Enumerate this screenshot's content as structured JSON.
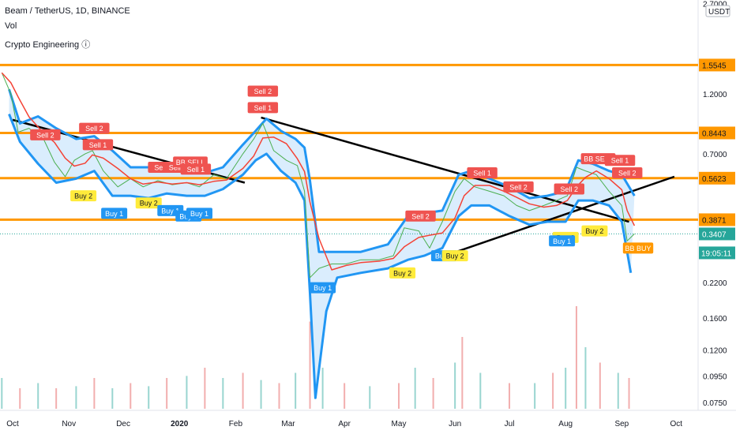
{
  "header": {
    "symbol_line": "Beam / TetherUS, 1D, BINANCE",
    "vol_label": "Vol",
    "indicator_label": "Crypto Engineering ⓘ"
  },
  "axis": {
    "currency": "USDT",
    "top_value": "2.7000",
    "countdown": "19:05:11"
  },
  "colors": {
    "orange": "#ff9800",
    "black": "#000000",
    "blue_band": "#2196f3",
    "band_fill": "#bbdefb",
    "red_ma": "#f44336",
    "green_ma": "#4caf50",
    "sell_bg": "#ef5350",
    "buy2_bg": "#ffeb3b",
    "buy1_bg": "#2196f3",
    "last_price_bg": "#26a69a",
    "bb_buy_bg": "#ff9800"
  },
  "chart_data": {
    "type": "line",
    "scale": "log",
    "ylim": [
      0.065,
      2.75
    ],
    "y_ticks": [
      "2.7000",
      "1.5545",
      "1.2000",
      "0.8443",
      "0.7000",
      "0.5623",
      "0.3871",
      "0.3407",
      "0.2200",
      "0.1600",
      "0.1200",
      "0.0950",
      "0.0750"
    ],
    "x_ticks": [
      "Oct",
      "Nov",
      "Dec",
      "2020",
      "Feb",
      "Mar",
      "Apr",
      "May",
      "Jun",
      "Jul",
      "Aug",
      "Sep",
      "Oct"
    ],
    "horizontal_levels": [
      1.5545,
      0.8443,
      0.5623,
      0.3871
    ],
    "last_price": 0.3407,
    "trendlines": [
      {
        "from": [
          "2019-10-01",
          0.95
        ],
        "to": [
          "2020-02-06",
          0.54
        ]
      },
      {
        "from": [
          "2020-02-15",
          0.97
        ],
        "to": [
          "2020-09-05",
          0.38
        ]
      },
      {
        "from": [
          "2020-05-20",
          0.27
        ],
        "to": [
          "2020-09-30",
          0.57
        ]
      }
    ],
    "price_series": [
      [
        "2019-09-25",
        1.45
      ],
      [
        "2019-09-30",
        1.2
      ],
      [
        "2019-10-04",
        0.85
      ],
      [
        "2019-10-10",
        0.88
      ],
      [
        "2019-10-18",
        0.8
      ],
      [
        "2019-10-24",
        0.65
      ],
      [
        "2019-10-30",
        0.57
      ],
      [
        "2019-11-04",
        0.66
      ],
      [
        "2019-11-10",
        0.7
      ],
      [
        "2019-11-14",
        0.72
      ],
      [
        "2019-11-20",
        0.6
      ],
      [
        "2019-11-28",
        0.52
      ],
      [
        "2019-12-05",
        0.56
      ],
      [
        "2019-12-12",
        0.52
      ],
      [
        "2019-12-20",
        0.55
      ],
      [
        "2019-12-28",
        0.53
      ],
      [
        "2020-01-05",
        0.54
      ],
      [
        "2020-01-12",
        0.52
      ],
      [
        "2020-01-20",
        0.58
      ],
      [
        "2020-01-27",
        0.56
      ],
      [
        "2020-02-05",
        0.7
      ],
      [
        "2020-02-11",
        0.8
      ],
      [
        "2020-02-16",
        0.92
      ],
      [
        "2020-02-22",
        0.72
      ],
      [
        "2020-02-29",
        0.66
      ],
      [
        "2020-03-06",
        0.63
      ],
      [
        "2020-03-10",
        0.5
      ],
      [
        "2020-03-13",
        0.23
      ],
      [
        "2020-03-18",
        0.25
      ],
      [
        "2020-03-25",
        0.26
      ],
      [
        "2020-04-02",
        0.26
      ],
      [
        "2020-04-10",
        0.27
      ],
      [
        "2020-04-20",
        0.27
      ],
      [
        "2020-04-28",
        0.28
      ],
      [
        "2020-05-04",
        0.36
      ],
      [
        "2020-05-12",
        0.35
      ],
      [
        "2020-05-18",
        0.3
      ],
      [
        "2020-05-25",
        0.38
      ],
      [
        "2020-06-01",
        0.5
      ],
      [
        "2020-06-06",
        0.56
      ],
      [
        "2020-06-12",
        0.52
      ],
      [
        "2020-06-20",
        0.5
      ],
      [
        "2020-06-28",
        0.48
      ],
      [
        "2020-07-05",
        0.44
      ],
      [
        "2020-07-12",
        0.42
      ],
      [
        "2020-07-20",
        0.44
      ],
      [
        "2020-07-27",
        0.46
      ],
      [
        "2020-08-02",
        0.48
      ],
      [
        "2020-08-07",
        0.62
      ],
      [
        "2020-08-12",
        0.6
      ],
      [
        "2020-08-18",
        0.58
      ],
      [
        "2020-08-25",
        0.5
      ],
      [
        "2020-09-01",
        0.44
      ],
      [
        "2020-09-04",
        0.32
      ],
      [
        "2020-09-08",
        0.3407
      ]
    ],
    "upper_band": [
      [
        "2019-09-29",
        1.25
      ],
      [
        "2019-10-05",
        0.92
      ],
      [
        "2019-10-15",
        0.98
      ],
      [
        "2019-10-25",
        0.88
      ],
      [
        "2019-11-05",
        0.8
      ],
      [
        "2019-11-15",
        0.82
      ],
      [
        "2019-11-25",
        0.72
      ],
      [
        "2019-12-05",
        0.62
      ],
      [
        "2019-12-15",
        0.62
      ],
      [
        "2019-12-25",
        0.6
      ],
      [
        "2020-01-05",
        0.6
      ],
      [
        "2020-01-15",
        0.59
      ],
      [
        "2020-01-25",
        0.62
      ],
      [
        "2020-02-05",
        0.76
      ],
      [
        "2020-02-12",
        0.86
      ],
      [
        "2020-02-18",
        0.96
      ],
      [
        "2020-02-26",
        0.86
      ],
      [
        "2020-03-05",
        0.8
      ],
      [
        "2020-03-10",
        0.74
      ],
      [
        "2020-03-13",
        0.55
      ],
      [
        "2020-03-18",
        0.29
      ],
      [
        "2020-03-28",
        0.29
      ],
      [
        "2020-04-10",
        0.29
      ],
      [
        "2020-04-25",
        0.31
      ],
      [
        "2020-05-06",
        0.4
      ],
      [
        "2020-05-15",
        0.41
      ],
      [
        "2020-05-25",
        0.42
      ],
      [
        "2020-06-03",
        0.58
      ],
      [
        "2020-06-10",
        0.6
      ],
      [
        "2020-06-20",
        0.56
      ],
      [
        "2020-07-01",
        0.52
      ],
      [
        "2020-07-12",
        0.47
      ],
      [
        "2020-07-22",
        0.48
      ],
      [
        "2020-08-01",
        0.5
      ],
      [
        "2020-08-08",
        0.66
      ],
      [
        "2020-08-16",
        0.64
      ],
      [
        "2020-08-25",
        0.6
      ],
      [
        "2020-09-01",
        0.58
      ],
      [
        "2020-09-08",
        0.48
      ]
    ],
    "lower_band": [
      [
        "2019-09-29",
        1.0
      ],
      [
        "2019-10-05",
        0.78
      ],
      [
        "2019-10-15",
        0.64
      ],
      [
        "2019-10-25",
        0.54
      ],
      [
        "2019-11-05",
        0.56
      ],
      [
        "2019-11-15",
        0.6
      ],
      [
        "2019-11-25",
        0.48
      ],
      [
        "2019-12-05",
        0.48
      ],
      [
        "2019-12-15",
        0.47
      ],
      [
        "2019-12-25",
        0.49
      ],
      [
        "2020-01-05",
        0.48
      ],
      [
        "2020-01-15",
        0.48
      ],
      [
        "2020-01-25",
        0.51
      ],
      [
        "2020-02-05",
        0.58
      ],
      [
        "2020-02-12",
        0.66
      ],
      [
        "2020-02-18",
        0.7
      ],
      [
        "2020-02-26",
        0.6
      ],
      [
        "2020-03-05",
        0.54
      ],
      [
        "2020-03-10",
        0.46
      ],
      [
        "2020-03-13",
        0.2
      ],
      [
        "2020-03-16",
        0.078
      ],
      [
        "2020-03-22",
        0.17
      ],
      [
        "2020-03-28",
        0.23
      ],
      [
        "2020-04-10",
        0.24
      ],
      [
        "2020-04-25",
        0.25
      ],
      [
        "2020-05-06",
        0.27
      ],
      [
        "2020-05-15",
        0.28
      ],
      [
        "2020-05-25",
        0.3
      ],
      [
        "2020-06-03",
        0.4
      ],
      [
        "2020-06-10",
        0.44
      ],
      [
        "2020-06-20",
        0.44
      ],
      [
        "2020-07-01",
        0.4
      ],
      [
        "2020-07-12",
        0.37
      ],
      [
        "2020-07-22",
        0.38
      ],
      [
        "2020-08-01",
        0.38
      ],
      [
        "2020-08-08",
        0.46
      ],
      [
        "2020-08-16",
        0.46
      ],
      [
        "2020-08-25",
        0.44
      ],
      [
        "2020-09-01",
        0.38
      ],
      [
        "2020-09-06",
        0.24
      ]
    ],
    "signals": [
      {
        "label": "Sell 2",
        "date": "2019-10-19",
        "price": 0.83,
        "kind": "sell"
      },
      {
        "label": "Sell 2",
        "date": "2019-11-15",
        "price": 0.88,
        "kind": "sell"
      },
      {
        "label": "Sell 1",
        "date": "2019-11-17",
        "price": 0.76,
        "kind": "sell"
      },
      {
        "label": "Buy 2",
        "date": "2019-11-09",
        "price": 0.48,
        "kind": "buy2"
      },
      {
        "label": "Buy 1",
        "date": "2019-11-26",
        "price": 0.41,
        "kind": "buy1"
      },
      {
        "label": "Buy 2",
        "date": "2019-12-15",
        "price": 0.45,
        "kind": "buy2"
      },
      {
        "label": "Buy 1",
        "date": "2019-12-27",
        "price": 0.42,
        "kind": "buy1"
      },
      {
        "label": "Buy 1",
        "date": "2020-01-06",
        "price": 0.4,
        "kind": "buy1"
      },
      {
        "label": "Buy 1",
        "date": "2020-01-12",
        "price": 0.41,
        "kind": "buy1"
      },
      {
        "label": "Sell 2",
        "date": "2019-12-23",
        "price": 0.62,
        "kind": "sell"
      },
      {
        "label": "Sell 1",
        "date": "2019-12-31",
        "price": 0.62,
        "kind": "sell"
      },
      {
        "label": "BB SELL",
        "date": "2020-01-07",
        "price": 0.65,
        "kind": "sell"
      },
      {
        "label": "Sell 1",
        "date": "2020-01-10",
        "price": 0.61,
        "kind": "sell"
      },
      {
        "label": "Sell 2",
        "date": "2020-02-16",
        "price": 1.23,
        "kind": "sell"
      },
      {
        "label": "Sell 1",
        "date": "2020-02-16",
        "price": 1.06,
        "kind": "sell"
      },
      {
        "label": "Buy 1",
        "date": "2020-03-20",
        "price": 0.21,
        "kind": "buy1"
      },
      {
        "label": "Buy 2",
        "date": "2020-05-03",
        "price": 0.24,
        "kind": "buy2"
      },
      {
        "label": "Sell 2",
        "date": "2020-05-13",
        "price": 0.4,
        "kind": "sell"
      },
      {
        "label": "Buy 1",
        "date": "2020-05-26",
        "price": 0.28,
        "kind": "buy1"
      },
      {
        "label": "Buy 2",
        "date": "2020-06-01",
        "price": 0.28,
        "kind": "buy2"
      },
      {
        "label": "Sell 1",
        "date": "2020-06-16",
        "price": 0.59,
        "kind": "sell"
      },
      {
        "label": "Sell 2",
        "date": "2020-07-06",
        "price": 0.52,
        "kind": "sell"
      },
      {
        "label": "Sell 2",
        "date": "2020-08-03",
        "price": 0.51,
        "kind": "sell"
      },
      {
        "label": "Buy 2",
        "date": "2020-08-01",
        "price": 0.33,
        "kind": "buy2"
      },
      {
        "label": "Buy 1",
        "date": "2020-07-30",
        "price": 0.32,
        "kind": "buy1"
      },
      {
        "label": "Buy 2",
        "date": "2020-08-17",
        "price": 0.35,
        "kind": "buy2"
      },
      {
        "label": "BB SELL",
        "date": "2020-08-19",
        "price": 0.67,
        "kind": "sell"
      },
      {
        "label": "Sell 1",
        "date": "2020-08-31",
        "price": 0.66,
        "kind": "sell"
      },
      {
        "label": "Sell 2",
        "date": "2020-09-04",
        "price": 0.59,
        "kind": "sell"
      },
      {
        "label": "BB BUY",
        "date": "2020-09-10",
        "price": 0.3,
        "kind": "bbbuy"
      }
    ],
    "volume": [
      [
        "2019-09-25",
        0.3
      ],
      [
        "2019-10-05",
        0.2
      ],
      [
        "2019-10-15",
        0.25
      ],
      [
        "2019-10-25",
        0.2
      ],
      [
        "2019-11-05",
        0.22
      ],
      [
        "2019-11-15",
        0.3
      ],
      [
        "2019-11-25",
        0.2
      ],
      [
        "2019-12-05",
        0.25
      ],
      [
        "2019-12-15",
        0.22
      ],
      [
        "2019-12-25",
        0.3
      ],
      [
        "2020-01-05",
        0.32
      ],
      [
        "2020-01-15",
        0.4
      ],
      [
        "2020-01-25",
        0.3
      ],
      [
        "2020-02-05",
        0.35
      ],
      [
        "2020-02-15",
        0.28
      ],
      [
        "2020-02-25",
        0.25
      ],
      [
        "2020-03-05",
        0.35
      ],
      [
        "2020-03-13",
        0.85
      ],
      [
        "2020-03-20",
        0.4
      ],
      [
        "2020-04-01",
        0.25
      ],
      [
        "2020-04-15",
        0.22
      ],
      [
        "2020-05-01",
        0.25
      ],
      [
        "2020-05-10",
        0.4
      ],
      [
        "2020-05-20",
        0.3
      ],
      [
        "2020-06-01",
        0.45
      ],
      [
        "2020-06-05",
        0.7
      ],
      [
        "2020-06-15",
        0.35
      ],
      [
        "2020-07-01",
        0.25
      ],
      [
        "2020-07-15",
        0.25
      ],
      [
        "2020-07-25",
        0.35
      ],
      [
        "2020-08-01",
        0.4
      ],
      [
        "2020-08-07",
        1.0
      ],
      [
        "2020-08-12",
        0.6
      ],
      [
        "2020-08-20",
        0.45
      ],
      [
        "2020-08-30",
        0.35
      ],
      [
        "2020-09-05",
        0.3
      ]
    ]
  }
}
